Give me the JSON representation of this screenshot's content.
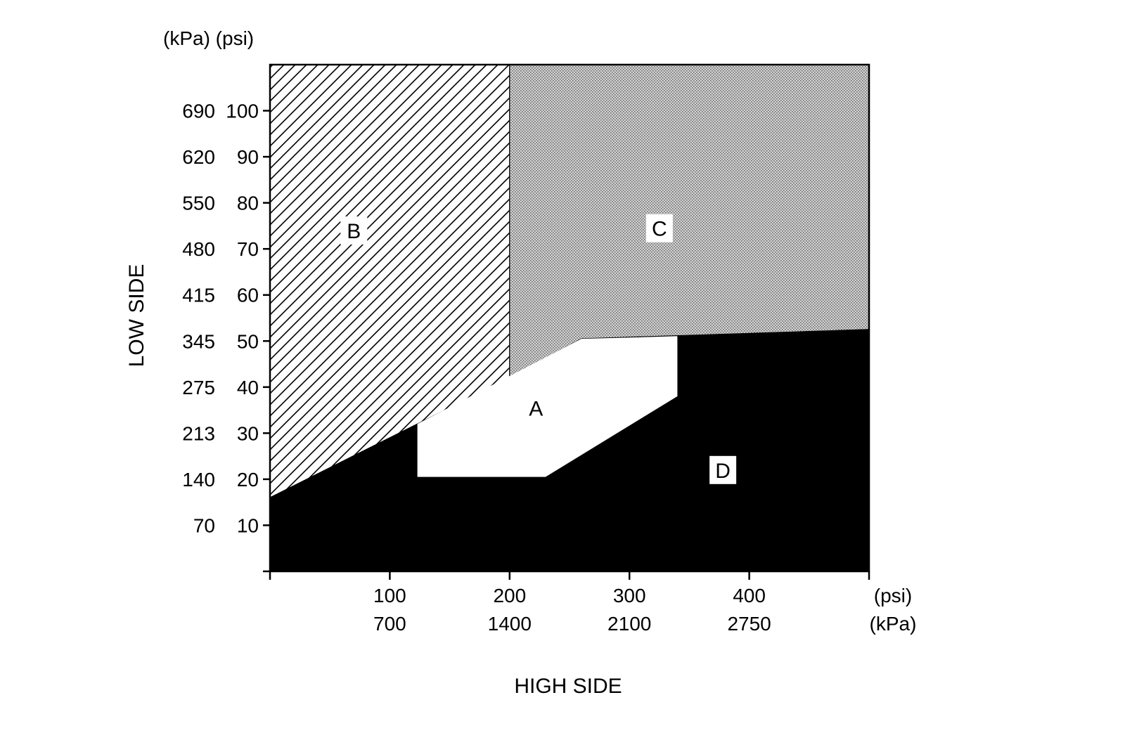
{
  "chart_data": {
    "type": "area",
    "title": "",
    "xlabel": "HIGH SIDE",
    "ylabel": "LOW SIDE",
    "x_units": {
      "primary": "(psi)",
      "secondary": "(kPa)"
    },
    "y_units": {
      "primary": "(psi)",
      "secondary": "(kPa)"
    },
    "xlim": [
      0,
      500
    ],
    "ylim": [
      0,
      110
    ],
    "x_ticks": [
      {
        "value": 0,
        "psi": "",
        "kpa": ""
      },
      {
        "value": 100,
        "psi": "100",
        "kpa": "700"
      },
      {
        "value": 200,
        "psi": "200",
        "kpa": "1400"
      },
      {
        "value": 300,
        "psi": "300",
        "kpa": "2100"
      },
      {
        "value": 400,
        "psi": "400",
        "kpa": "2750"
      },
      {
        "value": 500,
        "psi": "",
        "kpa": ""
      }
    ],
    "y_ticks": [
      {
        "value": 0,
        "psi": "",
        "kpa": ""
      },
      {
        "value": 10,
        "psi": "10",
        "kpa": "70"
      },
      {
        "value": 20,
        "psi": "20",
        "kpa": "140"
      },
      {
        "value": 30,
        "psi": "30",
        "kpa": "213"
      },
      {
        "value": 40,
        "psi": "40",
        "kpa": "275"
      },
      {
        "value": 50,
        "psi": "50",
        "kpa": "345"
      },
      {
        "value": 60,
        "psi": "60",
        "kpa": "415"
      },
      {
        "value": 70,
        "psi": "70",
        "kpa": "480"
      },
      {
        "value": 80,
        "psi": "80",
        "kpa": "550"
      },
      {
        "value": 90,
        "psi": "90",
        "kpa": "620"
      },
      {
        "value": 100,
        "psi": "100",
        "kpa": "690"
      }
    ],
    "regions": [
      {
        "label": "B",
        "fill": "hatch",
        "points": [
          [
            0,
            110
          ],
          [
            200,
            110
          ],
          [
            200,
            42
          ],
          [
            0,
            16
          ]
        ],
        "label_at": [
          70,
          74
        ]
      },
      {
        "label": "C",
        "fill": "dotted",
        "points": [
          [
            200,
            110
          ],
          [
            500,
            110
          ],
          [
            500,
            52.5
          ],
          [
            260,
            50.5
          ],
          [
            200,
            42
          ]
        ],
        "label_at": [
          325,
          74.5
        ]
      },
      {
        "label": "D",
        "fill": "#000000",
        "points": [
          [
            0,
            0
          ],
          [
            500,
            0
          ],
          [
            500,
            52.5
          ],
          [
            340,
            51
          ],
          [
            340,
            38
          ],
          [
            230,
            20.5
          ],
          [
            123,
            20.5
          ],
          [
            123,
            32
          ],
          [
            0,
            16
          ]
        ],
        "label_at": [
          378,
          22
        ]
      },
      {
        "label": "A",
        "fill": "#ffffff",
        "points": [
          [
            123,
            32
          ],
          [
            260,
            50.5
          ],
          [
            340,
            51
          ],
          [
            340,
            38
          ],
          [
            230,
            20.5
          ],
          [
            123,
            20.5
          ]
        ],
        "label_at": [
          222,
          35.5
        ]
      }
    ],
    "colors": {
      "axis": "#000000",
      "dark": "#000000",
      "light": "#ffffff",
      "stipple": "#b8b8b8"
    },
    "grid": false,
    "legend": "none"
  }
}
